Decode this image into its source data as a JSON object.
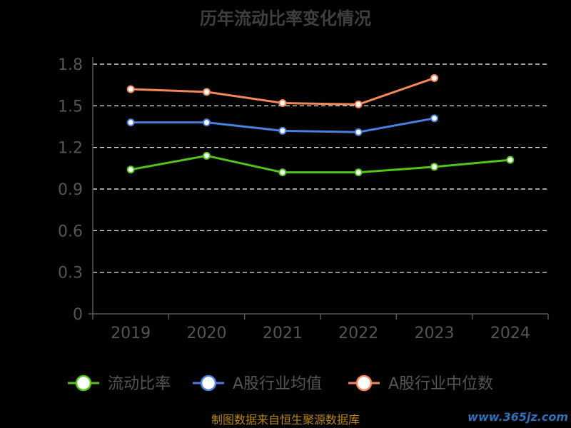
{
  "chart_data": {
    "type": "line",
    "title": "历年流动比率变化情况",
    "categories": [
      "2019",
      "2020",
      "2021",
      "2022",
      "2023",
      "2024"
    ],
    "ylim": [
      0,
      1.8
    ],
    "yticks": [
      "0",
      "0.3",
      "0.6",
      "0.9",
      "1.2",
      "1.5",
      "1.8"
    ],
    "grid": true,
    "legend_position": "bottom",
    "series": [
      {
        "name": "流动比率",
        "color": "#52c41a",
        "values": [
          1.04,
          1.14,
          1.02,
          1.02,
          1.06,
          1.11
        ]
      },
      {
        "name": "A股行业均值",
        "color": "#4a7fe0",
        "values": [
          1.38,
          1.38,
          1.32,
          1.31,
          1.41,
          null
        ]
      },
      {
        "name": "A股行业中位数",
        "color": "#f4875a",
        "values": [
          1.62,
          1.6,
          1.52,
          1.51,
          1.7,
          null
        ]
      }
    ]
  },
  "footer": {
    "source": "制图数据来自恒生聚源数据库",
    "watermark": "www.365jz.com"
  }
}
